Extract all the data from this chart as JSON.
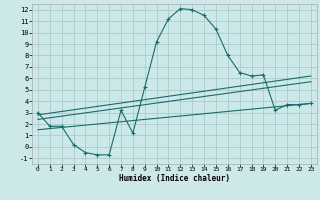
{
  "xlabel": "Humidex (Indice chaleur)",
  "bg_color": "#cce8e8",
  "grid_color": "#aacccc",
  "line_color": "#1a6b6b",
  "xlim": [
    -0.5,
    23.5
  ],
  "ylim": [
    -1.5,
    12.5
  ],
  "xticks": [
    0,
    1,
    2,
    3,
    4,
    5,
    6,
    7,
    8,
    9,
    10,
    11,
    12,
    13,
    14,
    15,
    16,
    17,
    18,
    19,
    20,
    21,
    22,
    23
  ],
  "yticks": [
    -1,
    0,
    1,
    2,
    3,
    4,
    5,
    6,
    7,
    8,
    9,
    10,
    11,
    12
  ],
  "line1_x": [
    0,
    1,
    2,
    3,
    4,
    5,
    6,
    7,
    8,
    9,
    10,
    11,
    12,
    13,
    14,
    15,
    16,
    17,
    18,
    19,
    20,
    21,
    22,
    23
  ],
  "line1_y": [
    3.0,
    1.8,
    1.8,
    0.2,
    -0.5,
    -0.7,
    -0.7,
    3.2,
    1.2,
    5.2,
    9.2,
    11.2,
    12.1,
    12.0,
    11.5,
    10.3,
    8.0,
    6.5,
    6.2,
    6.3,
    3.2,
    3.7,
    3.7,
    3.8
  ],
  "line2_x": [
    0,
    23
  ],
  "line2_y": [
    2.8,
    6.2
  ],
  "line3_x": [
    0,
    23
  ],
  "line3_y": [
    2.4,
    5.7
  ],
  "line4_x": [
    0,
    23
  ],
  "line4_y": [
    1.5,
    3.8
  ]
}
